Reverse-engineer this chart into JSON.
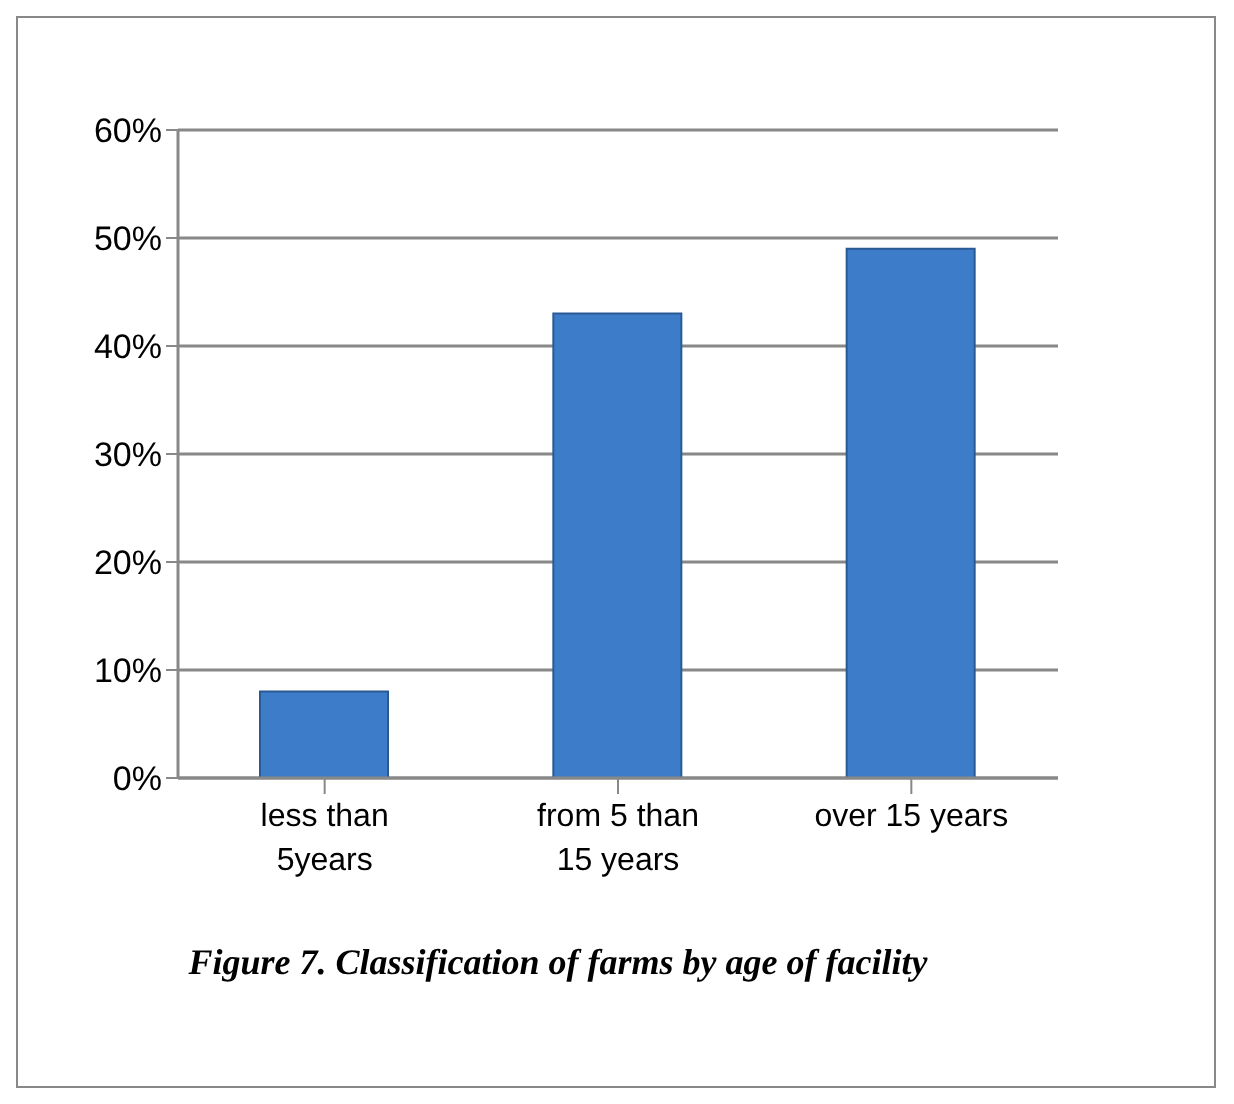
{
  "chart_data": {
    "type": "bar",
    "title": "Figure 7. Classification of farms by age of facility",
    "categories": [
      "less than 5years",
      "from 5 than 15 years",
      "over 15 years"
    ],
    "values": [
      8,
      43,
      49
    ],
    "color": "#3d7cc9",
    "ylim": [
      0,
      60
    ],
    "yticks": [
      {
        "value": 0,
        "label": "0%"
      },
      {
        "value": 10,
        "label": "10%"
      },
      {
        "value": 20,
        "label": "20%"
      },
      {
        "value": 30,
        "label": "30%"
      },
      {
        "value": 40,
        "label": "40%"
      },
      {
        "value": 50,
        "label": "50%"
      },
      {
        "value": 60,
        "label": "60%"
      }
    ],
    "grid": "y",
    "legend": false
  }
}
